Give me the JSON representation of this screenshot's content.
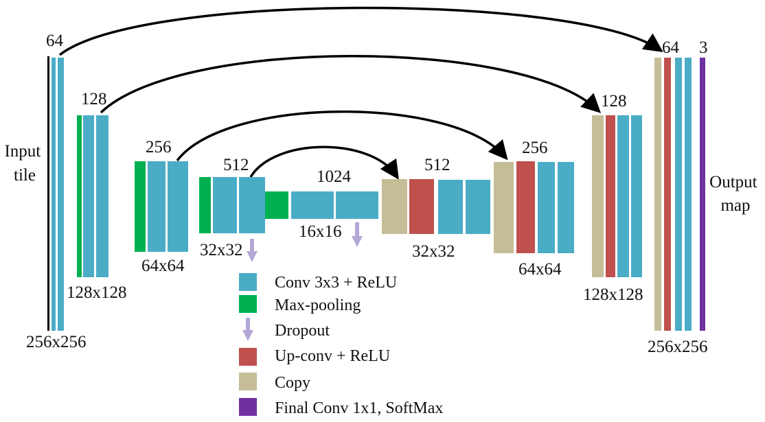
{
  "colors": {
    "conv": "#4bacc6",
    "maxpool": "#00b050",
    "dropout": "#b4a7d6",
    "upconv": "#c0504d",
    "copy": "#c4bd97",
    "final": "#7030a0",
    "input": "#000000",
    "arrow": "#000000"
  },
  "labels": {
    "input_tile": [
      "Input",
      "tile"
    ],
    "output_map": [
      "Output",
      "map"
    ],
    "ch_64_left": "64",
    "ch_128_left": "128",
    "ch_256_left": "256",
    "ch_512_left": "512",
    "ch_1024": "1024",
    "ch_512_right": "512",
    "ch_256_right": "256",
    "ch_128_right": "128",
    "ch_64_right": "64",
    "ch_3": "3",
    "size_256_left": "256x256",
    "size_128_left": "128x128",
    "size_64_left": "64x64",
    "size_32_left": "32x32",
    "size_16": "16x16",
    "size_32_right": "32x32",
    "size_64_right": "64x64",
    "size_128_right": "128x128",
    "size_256_right": "256x256"
  },
  "legend": [
    {
      "key": "conv",
      "icon": "rect",
      "label": "Conv 3x3 + ReLU"
    },
    {
      "key": "maxpool",
      "icon": "rect",
      "label": "Max-pooling"
    },
    {
      "key": "dropout",
      "icon": "arrow",
      "label": "Dropout"
    },
    {
      "key": "upconv",
      "icon": "rect",
      "label": "Up-conv + ReLU"
    },
    {
      "key": "copy",
      "icon": "rect",
      "label": "Copy"
    },
    {
      "key": "final",
      "icon": "rect",
      "label": "Final Conv 1x1, SoftMax"
    }
  ]
}
